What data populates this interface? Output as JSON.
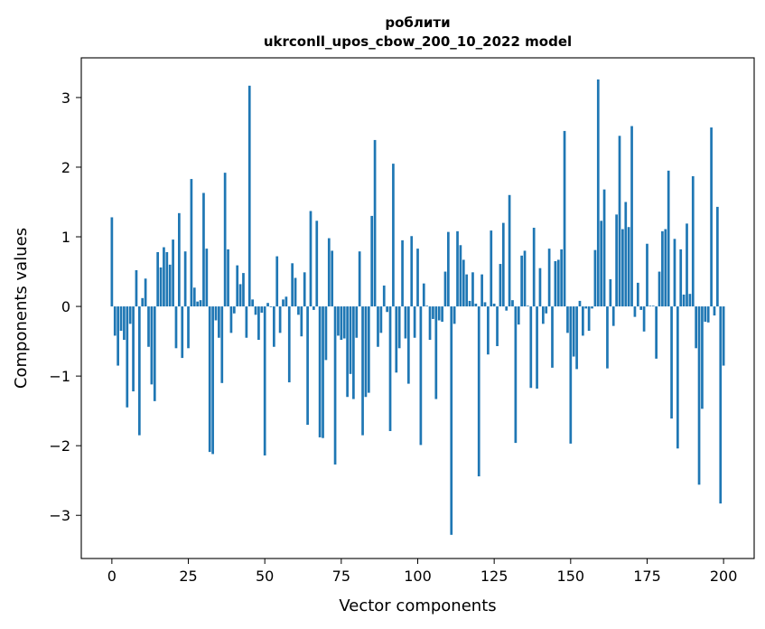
{
  "chart_data": {
    "type": "bar",
    "title": "роблити",
    "subtitle": "ukrconll_upos_cbow_200_10_2022 model",
    "xlabel": "Vector components",
    "ylabel": "Components values",
    "xlim": [
      -10,
      210
    ],
    "ylim": [
      -3.62,
      3.57
    ],
    "xticks": [
      0,
      25,
      50,
      75,
      100,
      125,
      150,
      175,
      200
    ],
    "yticks": [
      -3,
      -2,
      -1,
      0,
      1,
      2,
      3
    ],
    "xtick_labels": [
      "0",
      "25",
      "50",
      "75",
      "100",
      "125",
      "150",
      "175",
      "200"
    ],
    "ytick_labels": [
      "−3",
      "−2",
      "−1",
      "0",
      "1",
      "2",
      "3"
    ],
    "grid": false,
    "color": "#1f77b4",
    "values": [
      1.28,
      -0.42,
      -0.85,
      -0.35,
      -0.48,
      -1.45,
      -0.25,
      -1.22,
      0.52,
      -1.85,
      0.12,
      0.4,
      -0.58,
      -1.12,
      -1.36,
      0.78,
      0.56,
      0.85,
      0.78,
      0.6,
      0.96,
      -0.6,
      1.34,
      -0.74,
      0.79,
      -0.6,
      1.83,
      0.27,
      0.07,
      0.09,
      1.63,
      0.83,
      -2.09,
      -2.12,
      -0.2,
      -0.45,
      -1.1,
      1.92,
      0.82,
      -0.38,
      -0.1,
      0.59,
      0.32,
      0.48,
      -0.45,
      3.17,
      0.1,
      -0.12,
      -0.48,
      -0.09,
      -2.14,
      0.05,
      -0.01,
      -0.58,
      0.72,
      -0.38,
      0.1,
      0.14,
      -1.09,
      0.62,
      0.41,
      -0.12,
      -0.43,
      0.49,
      -1.7,
      1.37,
      -0.05,
      1.23,
      -1.88,
      -1.89,
      -0.77,
      0.98,
      0.8,
      -2.27,
      -0.42,
      -0.48,
      -0.46,
      -1.3,
      -0.97,
      -1.33,
      -0.45,
      0.79,
      -1.85,
      -1.3,
      -1.24,
      1.3,
      2.39,
      -0.58,
      -0.38,
      0.3,
      -0.08,
      -1.79,
      2.05,
      -0.95,
      -0.6,
      0.95,
      -0.46,
      -1.11,
      1.01,
      -0.45,
      0.83,
      -1.99,
      0.33,
      0.01,
      -0.48,
      -0.18,
      -1.33,
      -0.2,
      -0.22,
      0.5,
      1.07,
      -3.28,
      -0.25,
      1.08,
      0.88,
      0.67,
      0.46,
      0.08,
      0.49,
      0.04,
      -2.44,
      0.46,
      0.06,
      -0.69,
      1.09,
      0.04,
      -0.57,
      0.61,
      1.2,
      -0.06,
      1.6,
      0.09,
      -1.96,
      -0.26,
      0.73,
      0.8,
      0.01,
      -1.17,
      1.13,
      -1.18,
      0.55,
      -0.25,
      -0.1,
      0.83,
      -0.88,
      0.65,
      0.67,
      0.82,
      2.52,
      -0.38,
      -1.97,
      -0.72,
      -0.9,
      0.08,
      -0.42,
      -0.03,
      -0.35,
      -0.03,
      0.81,
      3.26,
      1.23,
      1.68,
      -0.89,
      0.39,
      -0.28,
      1.32,
      2.45,
      1.11,
      1.5,
      1.14,
      2.59,
      -0.15,
      0.34,
      -0.05,
      -0.36,
      0.9,
      0.01,
      0.01,
      -0.75,
      0.5,
      1.08,
      1.11,
      1.95,
      -1.61,
      0.97,
      -2.04,
      0.82,
      0.17,
      1.19,
      0.18,
      1.87,
      -0.6,
      -2.56,
      -1.47,
      -0.22,
      -0.23,
      2.57,
      -0.13,
      1.43,
      -2.83,
      -0.85
    ]
  }
}
